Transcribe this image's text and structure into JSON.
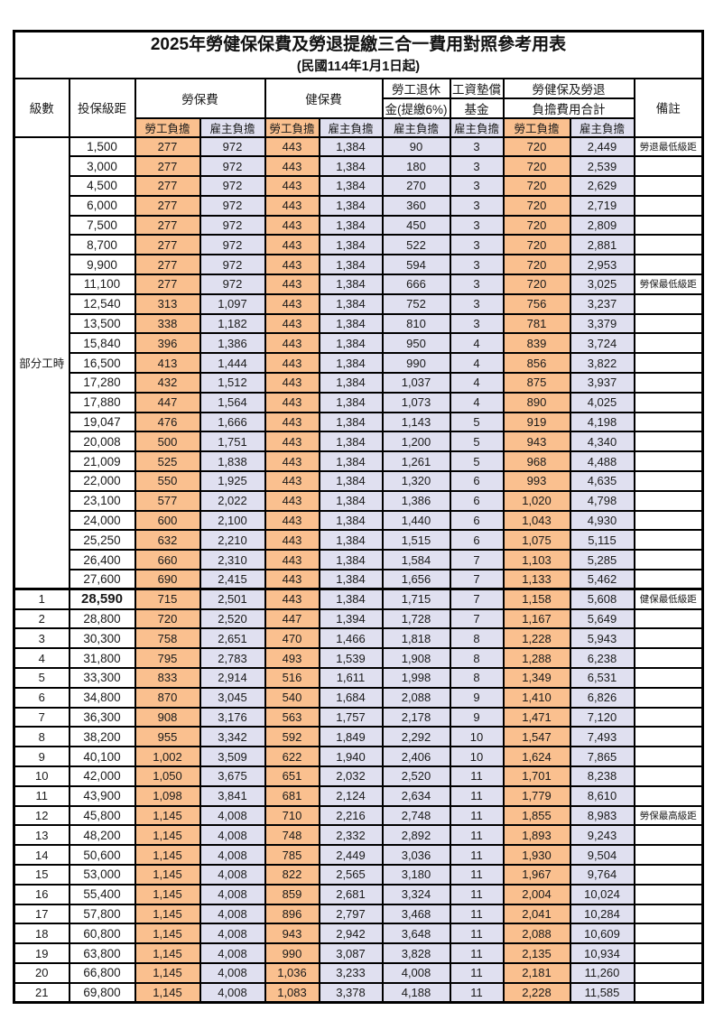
{
  "page": {
    "title": "2025年勞健保保費及勞退提繳三合一費用對照參考用表",
    "subtitle": "(民國114年1月1日起)"
  },
  "colors": {
    "employee_column_bg": "#FAC08F",
    "employer_column_bg": "#E0E0F0",
    "highlight_text": "#FF4040",
    "border": "#000000"
  },
  "header": {
    "level": "級數",
    "bracket": "投保級距",
    "labor_insurance": "勞保費",
    "health_insurance": "健保費",
    "pension_line1": "勞工退休",
    "pension_line2": "金(提繳6%)",
    "wage_fund_line1": "工資墊償",
    "wage_fund_line2": "基金",
    "total_line1": "勞健保及勞退",
    "total_line2": "負擔費用合計",
    "employee": "勞工負擔",
    "employer": "雇主負擔",
    "remark": "備註"
  },
  "part_time_label": "部分工時",
  "part_time_row_count": 23,
  "column_classes": [
    "emp",
    "er",
    "emp",
    "er",
    "er",
    "er",
    "emp",
    "er"
  ],
  "column_names": [
    "labor-employee-cell",
    "labor-employer-cell",
    "health-employee-cell",
    "health-employer-cell",
    "pension-employer-cell",
    "wage-fund-employer-cell",
    "total-employee-cell",
    "total-employer-cell"
  ],
  "rows": [
    {
      "level": "",
      "bracket": "1,500",
      "values": [
        "277",
        "972",
        "443",
        "1,384",
        "90",
        "3",
        "720",
        "2,449"
      ],
      "remark": "勞退最低級距",
      "red": true
    },
    {
      "level": "",
      "bracket": "3,000",
      "values": [
        "277",
        "972",
        "443",
        "1,384",
        "180",
        "3",
        "720",
        "2,539"
      ],
      "remark": "",
      "red": false
    },
    {
      "level": "",
      "bracket": "4,500",
      "values": [
        "277",
        "972",
        "443",
        "1,384",
        "270",
        "3",
        "720",
        "2,629"
      ],
      "remark": "",
      "red": false
    },
    {
      "level": "",
      "bracket": "6,000",
      "values": [
        "277",
        "972",
        "443",
        "1,384",
        "360",
        "3",
        "720",
        "2,719"
      ],
      "remark": "",
      "red": false
    },
    {
      "level": "",
      "bracket": "7,500",
      "values": [
        "277",
        "972",
        "443",
        "1,384",
        "450",
        "3",
        "720",
        "2,809"
      ],
      "remark": "",
      "red": false
    },
    {
      "level": "",
      "bracket": "8,700",
      "values": [
        "277",
        "972",
        "443",
        "1,384",
        "522",
        "3",
        "720",
        "2,881"
      ],
      "remark": "",
      "red": false
    },
    {
      "level": "",
      "bracket": "9,900",
      "values": [
        "277",
        "972",
        "443",
        "1,384",
        "594",
        "3",
        "720",
        "2,953"
      ],
      "remark": "",
      "red": false
    },
    {
      "level": "",
      "bracket": "11,100",
      "values": [
        "277",
        "972",
        "443",
        "1,384",
        "666",
        "3",
        "720",
        "3,025"
      ],
      "remark": "勞保最低級距",
      "red": true
    },
    {
      "level": "",
      "bracket": "12,540",
      "values": [
        "313",
        "1,097",
        "443",
        "1,384",
        "752",
        "3",
        "756",
        "3,237"
      ],
      "remark": "",
      "red": false
    },
    {
      "level": "",
      "bracket": "13,500",
      "values": [
        "338",
        "1,182",
        "443",
        "1,384",
        "810",
        "3",
        "781",
        "3,379"
      ],
      "remark": "",
      "red": false
    },
    {
      "level": "",
      "bracket": "15,840",
      "values": [
        "396",
        "1,386",
        "443",
        "1,384",
        "950",
        "4",
        "839",
        "3,724"
      ],
      "remark": "",
      "red": false
    },
    {
      "level": "",
      "bracket": "16,500",
      "values": [
        "413",
        "1,444",
        "443",
        "1,384",
        "990",
        "4",
        "856",
        "3,822"
      ],
      "remark": "",
      "red": false
    },
    {
      "level": "",
      "bracket": "17,280",
      "values": [
        "432",
        "1,512",
        "443",
        "1,384",
        "1,037",
        "4",
        "875",
        "3,937"
      ],
      "remark": "",
      "red": false
    },
    {
      "level": "",
      "bracket": "17,880",
      "values": [
        "447",
        "1,564",
        "443",
        "1,384",
        "1,073",
        "4",
        "890",
        "4,025"
      ],
      "remark": "",
      "red": false
    },
    {
      "level": "",
      "bracket": "19,047",
      "values": [
        "476",
        "1,666",
        "443",
        "1,384",
        "1,143",
        "5",
        "919",
        "4,198"
      ],
      "remark": "",
      "red": false
    },
    {
      "level": "",
      "bracket": "20,008",
      "values": [
        "500",
        "1,751",
        "443",
        "1,384",
        "1,200",
        "5",
        "943",
        "4,340"
      ],
      "remark": "",
      "red": false
    },
    {
      "level": "",
      "bracket": "21,009",
      "values": [
        "525",
        "1,838",
        "443",
        "1,384",
        "1,261",
        "5",
        "968",
        "4,488"
      ],
      "remark": "",
      "red": false
    },
    {
      "level": "",
      "bracket": "22,000",
      "values": [
        "550",
        "1,925",
        "443",
        "1,384",
        "1,320",
        "6",
        "993",
        "4,635"
      ],
      "remark": "",
      "red": false
    },
    {
      "level": "",
      "bracket": "23,100",
      "values": [
        "577",
        "2,022",
        "443",
        "1,384",
        "1,386",
        "6",
        "1,020",
        "4,798"
      ],
      "remark": "",
      "red": false
    },
    {
      "level": "",
      "bracket": "24,000",
      "values": [
        "600",
        "2,100",
        "443",
        "1,384",
        "1,440",
        "6",
        "1,043",
        "4,930"
      ],
      "remark": "",
      "red": false
    },
    {
      "level": "",
      "bracket": "25,250",
      "values": [
        "632",
        "2,210",
        "443",
        "1,384",
        "1,515",
        "6",
        "1,075",
        "5,115"
      ],
      "remark": "",
      "red": false
    },
    {
      "level": "",
      "bracket": "26,400",
      "values": [
        "660",
        "2,310",
        "443",
        "1,384",
        "1,584",
        "7",
        "1,103",
        "5,285"
      ],
      "remark": "",
      "red": false
    },
    {
      "level": "",
      "bracket": "27,600",
      "values": [
        "690",
        "2,415",
        "443",
        "1,384",
        "1,656",
        "7",
        "1,133",
        "5,462"
      ],
      "remark": "",
      "red": false
    },
    {
      "level": "1",
      "bracket": "28,590",
      "values": [
        "715",
        "2,501",
        "443",
        "1,384",
        "1,715",
        "7",
        "1,158",
        "5,608"
      ],
      "remark": "健保最低級距",
      "red": true,
      "bold": true,
      "thick_top": true
    },
    {
      "level": "2",
      "bracket": "28,800",
      "values": [
        "720",
        "2,520",
        "447",
        "1,394",
        "1,728",
        "7",
        "1,167",
        "5,649"
      ],
      "remark": "",
      "red": false
    },
    {
      "level": "3",
      "bracket": "30,300",
      "values": [
        "758",
        "2,651",
        "470",
        "1,466",
        "1,818",
        "8",
        "1,228",
        "5,943"
      ],
      "remark": "",
      "red": false
    },
    {
      "level": "4",
      "bracket": "31,800",
      "values": [
        "795",
        "2,783",
        "493",
        "1,539",
        "1,908",
        "8",
        "1,288",
        "6,238"
      ],
      "remark": "",
      "red": false
    },
    {
      "level": "5",
      "bracket": "33,300",
      "values": [
        "833",
        "2,914",
        "516",
        "1,611",
        "1,998",
        "8",
        "1,349",
        "6,531"
      ],
      "remark": "",
      "red": false
    },
    {
      "level": "6",
      "bracket": "34,800",
      "values": [
        "870",
        "3,045",
        "540",
        "1,684",
        "2,088",
        "9",
        "1,410",
        "6,826"
      ],
      "remark": "",
      "red": false
    },
    {
      "level": "7",
      "bracket": "36,300",
      "values": [
        "908",
        "3,176",
        "563",
        "1,757",
        "2,178",
        "9",
        "1,471",
        "7,120"
      ],
      "remark": "",
      "red": false
    },
    {
      "level": "8",
      "bracket": "38,200",
      "values": [
        "955",
        "3,342",
        "592",
        "1,849",
        "2,292",
        "10",
        "1,547",
        "7,493"
      ],
      "remark": "",
      "red": false
    },
    {
      "level": "9",
      "bracket": "40,100",
      "values": [
        "1,002",
        "3,509",
        "622",
        "1,940",
        "2,406",
        "10",
        "1,624",
        "7,865"
      ],
      "remark": "",
      "red": false
    },
    {
      "level": "10",
      "bracket": "42,000",
      "values": [
        "1,050",
        "3,675",
        "651",
        "2,032",
        "2,520",
        "11",
        "1,701",
        "8,238"
      ],
      "remark": "",
      "red": false
    },
    {
      "level": "11",
      "bracket": "43,900",
      "values": [
        "1,098",
        "3,841",
        "681",
        "2,124",
        "2,634",
        "11",
        "1,779",
        "8,610"
      ],
      "remark": "",
      "red": false
    },
    {
      "level": "12",
      "bracket": "45,800",
      "values": [
        "1,145",
        "4,008",
        "710",
        "2,216",
        "2,748",
        "11",
        "1,855",
        "8,983"
      ],
      "remark": "勞保最高級距",
      "red": true
    },
    {
      "level": "13",
      "bracket": "48,200",
      "values": [
        "1,145",
        "4,008",
        "748",
        "2,332",
        "2,892",
        "11",
        "1,893",
        "9,243"
      ],
      "remark": "",
      "red": false
    },
    {
      "level": "14",
      "bracket": "50,600",
      "values": [
        "1,145",
        "4,008",
        "785",
        "2,449",
        "3,036",
        "11",
        "1,930",
        "9,504"
      ],
      "remark": "",
      "red": false
    },
    {
      "level": "15",
      "bracket": "53,000",
      "values": [
        "1,145",
        "4,008",
        "822",
        "2,565",
        "3,180",
        "11",
        "1,967",
        "9,764"
      ],
      "remark": "",
      "red": false
    },
    {
      "level": "16",
      "bracket": "55,400",
      "values": [
        "1,145",
        "4,008",
        "859",
        "2,681",
        "3,324",
        "11",
        "2,004",
        "10,024"
      ],
      "remark": "",
      "red": false
    },
    {
      "level": "17",
      "bracket": "57,800",
      "values": [
        "1,145",
        "4,008",
        "896",
        "2,797",
        "3,468",
        "11",
        "2,041",
        "10,284"
      ],
      "remark": "",
      "red": false
    },
    {
      "level": "18",
      "bracket": "60,800",
      "values": [
        "1,145",
        "4,008",
        "943",
        "2,942",
        "3,648",
        "11",
        "2,088",
        "10,609"
      ],
      "remark": "",
      "red": false
    },
    {
      "level": "19",
      "bracket": "63,800",
      "values": [
        "1,145",
        "4,008",
        "990",
        "3,087",
        "3,828",
        "11",
        "2,135",
        "10,934"
      ],
      "remark": "",
      "red": false
    },
    {
      "level": "20",
      "bracket": "66,800",
      "values": [
        "1,145",
        "4,008",
        "1,036",
        "3,233",
        "4,008",
        "11",
        "2,181",
        "11,260"
      ],
      "remark": "",
      "red": false
    },
    {
      "level": "21",
      "bracket": "69,800",
      "values": [
        "1,145",
        "4,008",
        "1,083",
        "3,378",
        "4,188",
        "11",
        "2,228",
        "11,585"
      ],
      "remark": "",
      "red": false
    }
  ]
}
